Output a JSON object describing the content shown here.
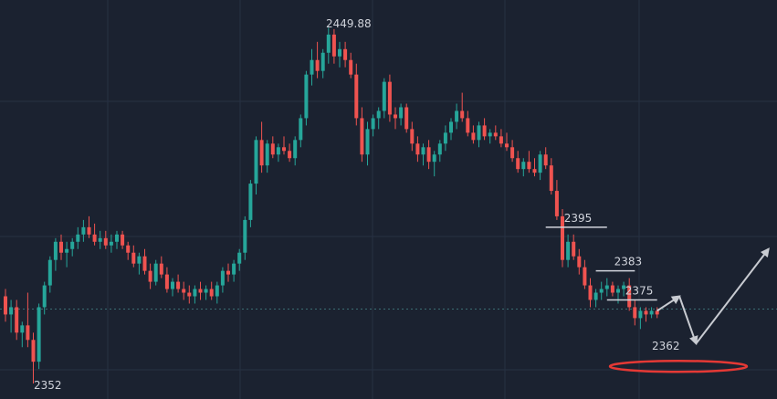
{
  "colors": {
    "background": "#1b2230",
    "grid": "#273142",
    "up": "#26a69a",
    "down": "#ef5350",
    "annotation": "#d1d4dc",
    "arrow": "#c8cbd1",
    "target_ring": "#e53935",
    "current_price_line": "#3b6e73"
  },
  "chart_data": {
    "type": "candlestick",
    "title": "",
    "xlabel": "",
    "ylabel": "",
    "ylim": [
      2349,
      2455
    ],
    "grid": true,
    "high_label": "2449.88",
    "low_label": "2352",
    "current_price": 2372.5,
    "levels": [
      {
        "label": "2395",
        "value": 2395
      },
      {
        "label": "2383",
        "value": 2383
      },
      {
        "label": "2375",
        "value": 2375
      }
    ],
    "target": {
      "label": "2362",
      "value": 2362
    },
    "projection": {
      "path": [
        {
          "bar": 117,
          "price": 2372
        },
        {
          "bar": 121,
          "price": 2376
        },
        {
          "bar": 124,
          "price": 2363
        },
        {
          "bar": 137,
          "price": 2389
        }
      ]
    },
    "candles": [
      [
        2376,
        2378,
        2369,
        2371
      ],
      [
        2371,
        2375,
        2366,
        2373
      ],
      [
        2373,
        2375,
        2364,
        2366
      ],
      [
        2366,
        2369,
        2362,
        2368
      ],
      [
        2368,
        2377,
        2362,
        2364
      ],
      [
        2364,
        2366,
        2352,
        2358
      ],
      [
        2358,
        2374,
        2356,
        2373
      ],
      [
        2373,
        2380,
        2371,
        2379
      ],
      [
        2379,
        2387,
        2377,
        2386
      ],
      [
        2386,
        2392,
        2383,
        2391
      ],
      [
        2391,
        2393,
        2386,
        2388
      ],
      [
        2388,
        2391,
        2384,
        2389
      ],
      [
        2389,
        2392,
        2387,
        2391
      ],
      [
        2391,
        2395,
        2389,
        2393
      ],
      [
        2393,
        2397,
        2391,
        2395
      ],
      [
        2395,
        2398,
        2392,
        2393
      ],
      [
        2393,
        2396,
        2390,
        2391
      ],
      [
        2391,
        2394,
        2389,
        2392
      ],
      [
        2392,
        2394,
        2389,
        2390
      ],
      [
        2390,
        2393,
        2388,
        2391
      ],
      [
        2391,
        2394,
        2389,
        2393
      ],
      [
        2393,
        2394,
        2389,
        2390
      ],
      [
        2390,
        2391,
        2386,
        2388
      ],
      [
        2388,
        2390,
        2384,
        2385
      ],
      [
        2385,
        2388,
        2382,
        2387
      ],
      [
        2387,
        2389,
        2382,
        2383
      ],
      [
        2383,
        2385,
        2378,
        2380
      ],
      [
        2380,
        2386,
        2379,
        2385
      ],
      [
        2385,
        2387,
        2381,
        2382
      ],
      [
        2382,
        2384,
        2377,
        2378
      ],
      [
        2378,
        2381,
        2376,
        2380
      ],
      [
        2380,
        2382,
        2377,
        2378
      ],
      [
        2378,
        2380,
        2375,
        2377
      ],
      [
        2377,
        2379,
        2374,
        2376
      ],
      [
        2376,
        2379,
        2374,
        2378
      ],
      [
        2378,
        2380,
        2375,
        2377
      ],
      [
        2377,
        2379,
        2375,
        2378
      ],
      [
        2378,
        2380,
        2375,
        2376
      ],
      [
        2376,
        2380,
        2374,
        2379
      ],
      [
        2379,
        2384,
        2377,
        2383
      ],
      [
        2383,
        2385,
        2380,
        2382
      ],
      [
        2382,
        2386,
        2380,
        2385
      ],
      [
        2385,
        2389,
        2383,
        2388
      ],
      [
        2388,
        2398,
        2386,
        2397
      ],
      [
        2397,
        2408,
        2395,
        2407
      ],
      [
        2407,
        2420,
        2404,
        2419
      ],
      [
        2419,
        2424,
        2410,
        2412
      ],
      [
        2412,
        2419,
        2410,
        2418
      ],
      [
        2418,
        2420,
        2414,
        2415
      ],
      [
        2415,
        2418,
        2413,
        2417
      ],
      [
        2417,
        2420,
        2415,
        2416
      ],
      [
        2416,
        2418,
        2413,
        2414
      ],
      [
        2414,
        2420,
        2412,
        2419
      ],
      [
        2419,
        2426,
        2417,
        2425
      ],
      [
        2425,
        2438,
        2423,
        2437
      ],
      [
        2437,
        2444,
        2434,
        2441
      ],
      [
        2441,
        2446,
        2436,
        2438
      ],
      [
        2438,
        2444,
        2436,
        2443
      ],
      [
        2443,
        2449.88,
        2440,
        2448
      ],
      [
        2448,
        2449.5,
        2440,
        2442
      ],
      [
        2442,
        2446,
        2439,
        2444
      ],
      [
        2444,
        2446,
        2439,
        2441
      ],
      [
        2441,
        2443,
        2436,
        2437
      ],
      [
        2437,
        2440,
        2423,
        2425
      ],
      [
        2425,
        2428,
        2413,
        2415
      ],
      [
        2415,
        2424,
        2412,
        2422
      ],
      [
        2422,
        2426,
        2420,
        2425
      ],
      [
        2425,
        2428,
        2422,
        2427
      ],
      [
        2427,
        2436,
        2425,
        2435
      ],
      [
        2435,
        2437,
        2424,
        2426
      ],
      [
        2426,
        2428,
        2422,
        2425
      ],
      [
        2425,
        2429,
        2423,
        2428
      ],
      [
        2428,
        2429,
        2421,
        2422
      ],
      [
        2422,
        2424,
        2416,
        2418
      ],
      [
        2418,
        2420,
        2413,
        2415
      ],
      [
        2415,
        2418,
        2412,
        2417
      ],
      [
        2417,
        2419,
        2411,
        2413
      ],
      [
        2413,
        2416,
        2409,
        2415
      ],
      [
        2415,
        2419,
        2413,
        2418
      ],
      [
        2418,
        2423,
        2416,
        2421
      ],
      [
        2421,
        2425,
        2419,
        2424
      ],
      [
        2424,
        2429,
        2422,
        2427
      ],
      [
        2427,
        2432,
        2424,
        2425
      ],
      [
        2425,
        2427,
        2420,
        2421
      ],
      [
        2421,
        2423,
        2418,
        2419
      ],
      [
        2419,
        2424,
        2417,
        2423
      ],
      [
        2423,
        2425,
        2419,
        2420
      ],
      [
        2420,
        2422,
        2418,
        2421
      ],
      [
        2421,
        2423,
        2419,
        2420
      ],
      [
        2420,
        2422,
        2417,
        2418
      ],
      [
        2418,
        2421,
        2416,
        2417
      ],
      [
        2417,
        2419,
        2413,
        2414
      ],
      [
        2414,
        2416,
        2410,
        2411
      ],
      [
        2411,
        2414,
        2409,
        2413
      ],
      [
        2413,
        2416,
        2410,
        2411
      ],
      [
        2411,
        2414,
        2409,
        2410
      ],
      [
        2410,
        2416,
        2408,
        2415
      ],
      [
        2415,
        2417,
        2411,
        2412
      ],
      [
        2412,
        2414,
        2404,
        2405
      ],
      [
        2405,
        2408,
        2397,
        2398
      ],
      [
        2398,
        2400,
        2384,
        2386
      ],
      [
        2386,
        2393,
        2384,
        2391
      ],
      [
        2391,
        2393,
        2386,
        2387
      ],
      [
        2387,
        2389,
        2382,
        2384
      ],
      [
        2384,
        2386,
        2378,
        2379
      ],
      [
        2379,
        2381,
        2373,
        2375
      ],
      [
        2375,
        2378,
        2373,
        2377
      ],
      [
        2377,
        2380,
        2375,
        2378
      ],
      [
        2378,
        2381,
        2376,
        2379
      ],
      [
        2379,
        2380,
        2376,
        2377
      ],
      [
        2377,
        2379,
        2374,
        2378
      ],
      [
        2378,
        2380,
        2376,
        2379
      ],
      [
        2379,
        2381,
        2372,
        2373
      ],
      [
        2373,
        2375,
        2368,
        2370
      ],
      [
        2370,
        2373,
        2367,
        2372
      ],
      [
        2372,
        2373,
        2369,
        2371
      ],
      [
        2371,
        2373,
        2370,
        2372
      ],
      [
        2372,
        2373,
        2370,
        2371
      ]
    ]
  }
}
